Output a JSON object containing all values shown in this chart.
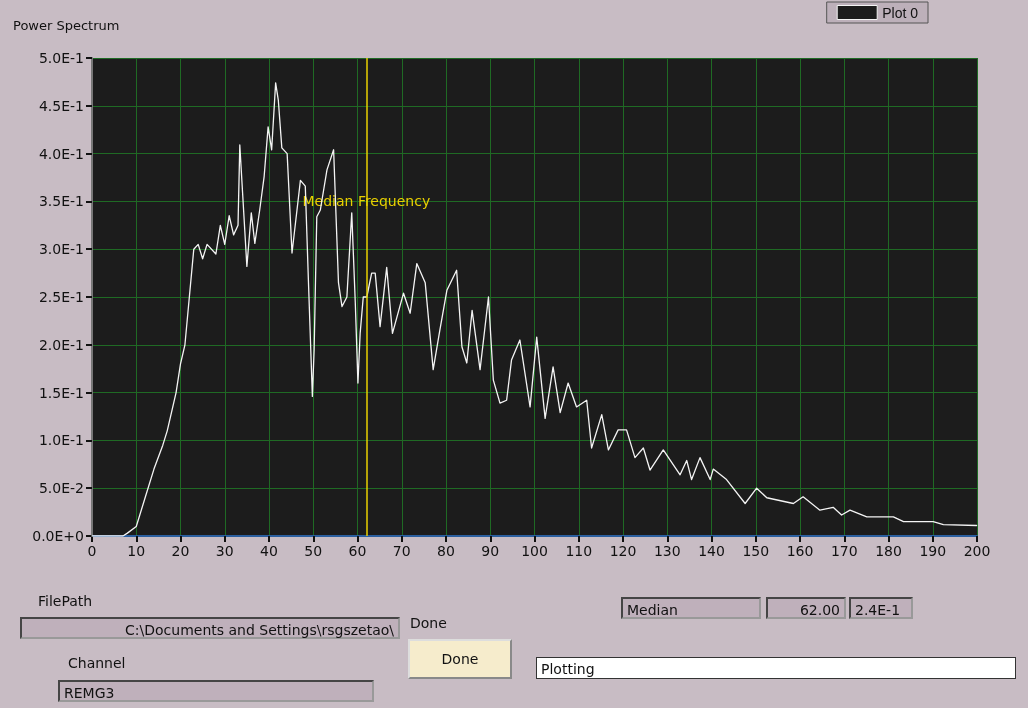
{
  "chart_data": {
    "type": "line",
    "title": "Power Spectrum",
    "legend": "top right",
    "grid": true,
    "marker": "none",
    "line_style": "solid",
    "xlim": [
      0,
      200
    ],
    "xticks": [
      0,
      10,
      20,
      30,
      40,
      50,
      60,
      70,
      80,
      90,
      100,
      110,
      120,
      130,
      140,
      150,
      160,
      170,
      180,
      190,
      200
    ],
    "ylim": [
      0,
      0.5
    ],
    "yticks": [
      {
        "value": 0,
        "label": "0.0E+0"
      },
      {
        "value": 0.05,
        "label": "5.0E-2"
      },
      {
        "value": 0.1,
        "label": "1.0E-1"
      },
      {
        "value": 0.15,
        "label": "1.5E-1"
      },
      {
        "value": 0.2,
        "label": "2.0E-1"
      },
      {
        "value": 0.25,
        "label": "2.5E-1"
      },
      {
        "value": 0.3,
        "label": "3.0E-1"
      },
      {
        "value": 0.35,
        "label": "3.5E-1"
      },
      {
        "value": 0.4,
        "label": "4.0E-1"
      },
      {
        "value": 0.45,
        "label": "4.5E-1"
      },
      {
        "value": 0.5,
        "label": "5.0E-1"
      }
    ],
    "ref_lines": [
      {
        "axis": "x",
        "value": 62,
        "label": "Median Frequency",
        "color": "#e8d000"
      }
    ],
    "annotations": [
      "FilePath",
      "C:\\Documents and Settings\\rsgszetao\\",
      "Channel",
      "REMG3",
      "Done",
      "Done",
      "Plotting",
      "Median",
      "62.00",
      "2.4E-1"
    ],
    "series": [
      {
        "name": "Plot 0",
        "color": "#f4f4f4",
        "x": [
          0,
          7,
          8,
          10,
          12,
          14,
          16,
          17,
          19,
          20,
          21,
          22,
          23,
          24,
          25,
          26,
          28,
          29,
          30,
          31,
          32,
          33,
          33.4,
          35,
          36,
          36.8,
          37.9,
          38.9,
          39.8,
          40.6,
          41.5,
          42.1,
          42.9,
          44.1,
          45.2,
          47.1,
          48.2,
          48.9,
          49.8,
          50.2,
          50.8,
          51.6,
          53.1,
          54.6,
          55.7,
          56.5,
          57.6,
          58.7,
          59.5,
          60.1,
          60.6,
          61.3,
          62.1,
          63.2,
          64,
          65.1,
          66.6,
          67.9,
          70.4,
          71.9,
          73.4,
          75.3,
          77.1,
          78.6,
          80.2,
          82.4,
          83.6,
          84.7,
          85.9,
          87.7,
          89.6,
          90.7,
          92.2,
          93.7,
          94.8,
          96.7,
          99,
          100.5,
          102.4,
          104.2,
          105.8,
          107.6,
          109.5,
          111.8,
          112.9,
          115.2,
          116.7,
          118.9,
          120.8,
          122.7,
          124.6,
          126.1,
          129.1,
          132.9,
          134.4,
          135.5,
          137.4,
          139.7,
          140.4,
          143.4,
          147.6,
          150.2,
          152.5,
          158.5,
          160.7,
          164.5,
          167.5,
          169.4,
          171.3,
          175.1,
          181.1,
          183.4,
          190.1,
          192.4,
          199.9
        ],
        "values": [
          0,
          0,
          0.003,
          0.01,
          0.04,
          0.07,
          0.095,
          0.11,
          0.15,
          0.18,
          0.2,
          0.25,
          0.3,
          0.305,
          0.29,
          0.305,
          0.295,
          0.325,
          0.305,
          0.335,
          0.315,
          0.325,
          0.409,
          0.282,
          0.338,
          0.306,
          0.341,
          0.376,
          0.428,
          0.404,
          0.474,
          0.456,
          0.406,
          0.4,
          0.296,
          0.372,
          0.366,
          0.268,
          0.146,
          0.195,
          0.334,
          0.341,
          0.383,
          0.404,
          0.265,
          0.24,
          0.25,
          0.338,
          0.244,
          0.16,
          0.212,
          0.25,
          0.25,
          0.275,
          0.275,
          0.219,
          0.281,
          0.212,
          0.254,
          0.233,
          0.285,
          0.265,
          0.174,
          0.215,
          0.257,
          0.278,
          0.198,
          0.181,
          0.236,
          0.174,
          0.25,
          0.163,
          0.139,
          0.142,
          0.184,
          0.205,
          0.135,
          0.208,
          0.123,
          0.177,
          0.129,
          0.16,
          0.135,
          0.142,
          0.092,
          0.127,
          0.09,
          0.111,
          0.111,
          0.082,
          0.092,
          0.069,
          0.09,
          0.064,
          0.079,
          0.059,
          0.082,
          0.059,
          0.07,
          0.059,
          0.034,
          0.05,
          0.04,
          0.034,
          0.041,
          0.027,
          0.03,
          0.022,
          0.027,
          0.02,
          0.02,
          0.015,
          0.015,
          0.012,
          0.011
        ]
      }
    ]
  }
}
